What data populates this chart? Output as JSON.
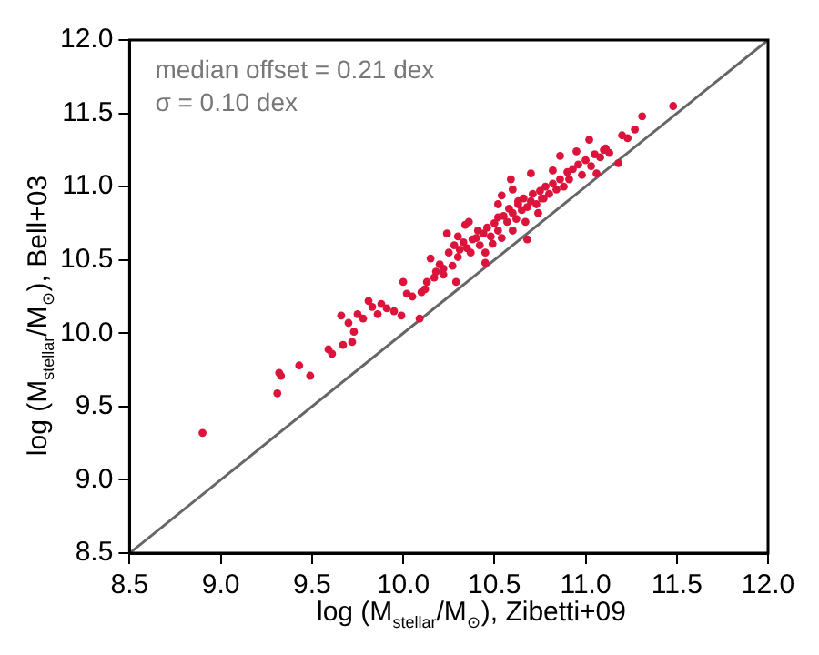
{
  "chart_data": {
    "type": "scatter",
    "xlabel": "log (M$_{stellar}$/M$_{⊙}$), Zibetti+09",
    "ylabel": "log (M$_{stellar}$/M$_{⊙}$), Bell+03",
    "annotations": [
      "median offset = 0.21 dex",
      "σ = 0.10 dex"
    ],
    "xlim": [
      8.5,
      12.0
    ],
    "ylim": [
      8.5,
      12.0
    ],
    "xticks": [
      {
        "value": 8.5,
        "label": "8.5"
      },
      {
        "value": 9,
        "label": "9.0"
      },
      {
        "value": 9.5,
        "label": "9.5"
      },
      {
        "value": 10,
        "label": "10.0"
      },
      {
        "value": 10.5,
        "label": "10.5"
      },
      {
        "value": 11,
        "label": "11.0"
      },
      {
        "value": 11.5,
        "label": "11.5"
      },
      {
        "value": 12,
        "label": "12.0"
      }
    ],
    "yticks": [
      {
        "value": 8.5,
        "label": "8.5"
      },
      {
        "value": 9,
        "label": "9.0"
      },
      {
        "value": 9.5,
        "label": "9.5"
      },
      {
        "value": 10,
        "label": "10.0"
      },
      {
        "value": 10.5,
        "label": "10.5"
      },
      {
        "value": 11,
        "label": "11.0"
      },
      {
        "value": 11.5,
        "label": "11.5"
      },
      {
        "value": 12,
        "label": "12.0"
      }
    ],
    "grid": false,
    "legend": false,
    "marker": "circle",
    "series": [
      {
        "type": "scatter",
        "color": "#dc143c",
        "x": [
          8.9,
          9.31,
          9.32,
          9.33,
          9.43,
          9.49,
          9.59,
          9.61,
          9.66,
          9.67,
          9.7,
          9.73,
          9.75,
          9.72,
          9.81,
          9.83,
          9.86,
          9.91,
          9.99,
          10.0,
          10.02,
          10.09,
          10.13,
          10.15,
          10.18,
          10.22,
          10.24,
          10.29,
          10.27,
          10.31,
          10.34,
          10.38,
          10.41,
          10.45,
          10.49,
          10.52,
          10.54,
          10.59,
          10.63,
          10.68,
          10.7,
          10.77,
          10.82,
          10.86,
          10.91,
          10.95,
          11.02,
          11.06,
          11.11,
          11.2,
          11.18,
          11.23,
          11.27,
          11.31,
          11.48,
          10.2,
          10.25,
          10.28,
          10.3,
          10.33,
          10.35,
          10.37,
          10.4,
          10.42,
          10.44,
          10.46,
          10.48,
          10.5,
          10.52,
          10.55,
          10.57,
          10.58,
          10.6,
          10.62,
          10.63,
          10.65,
          10.66,
          10.68,
          10.7,
          10.71,
          10.73,
          10.75,
          10.76,
          10.78,
          10.8,
          10.82,
          10.84,
          10.86,
          10.88,
          10.9,
          10.93,
          10.96,
          10.98,
          11.0,
          11.03,
          11.05,
          11.08,
          11.1,
          11.13,
          10.1,
          10.05,
          10.12,
          10.17,
          10.22,
          9.95,
          9.88,
          9.78,
          10.3,
          10.36,
          10.45,
          10.54,
          10.6,
          10.67,
          10.74,
          10.52,
          10.6
        ],
        "values": [
          9.32,
          9.59,
          9.73,
          9.71,
          9.78,
          9.71,
          9.89,
          9.86,
          10.12,
          9.92,
          10.07,
          10.01,
          10.13,
          9.94,
          10.22,
          10.18,
          10.13,
          10.17,
          10.12,
          10.35,
          10.27,
          10.1,
          10.35,
          10.51,
          10.42,
          10.44,
          10.68,
          10.35,
          10.46,
          10.57,
          10.74,
          10.64,
          10.7,
          10.48,
          10.61,
          10.79,
          10.94,
          11.05,
          10.9,
          10.64,
          11.09,
          10.92,
          11.11,
          11.21,
          11.05,
          11.24,
          11.32,
          11.09,
          11.26,
          11.35,
          11.16,
          11.33,
          11.39,
          11.48,
          11.55,
          10.47,
          10.55,
          10.6,
          10.52,
          10.62,
          10.58,
          10.55,
          10.65,
          10.6,
          10.68,
          10.72,
          10.66,
          10.75,
          10.7,
          10.8,
          10.76,
          10.85,
          10.82,
          10.78,
          10.88,
          10.84,
          10.92,
          10.86,
          10.9,
          10.95,
          10.88,
          10.97,
          10.92,
          11.0,
          10.95,
          11.02,
          10.98,
          11.05,
          11.0,
          11.1,
          11.12,
          11.15,
          11.08,
          11.18,
          11.14,
          11.22,
          11.2,
          11.25,
          11.23,
          10.28,
          10.25,
          10.3,
          10.38,
          10.4,
          10.15,
          10.2,
          10.1,
          10.66,
          10.76,
          10.55,
          10.65,
          10.7,
          10.76,
          10.82,
          10.88,
          10.98
        ]
      },
      {
        "type": "line",
        "color": "#666666",
        "marker": "none",
        "x": [
          8.5,
          12.0
        ],
        "values": [
          8.5,
          12.0
        ]
      }
    ]
  }
}
